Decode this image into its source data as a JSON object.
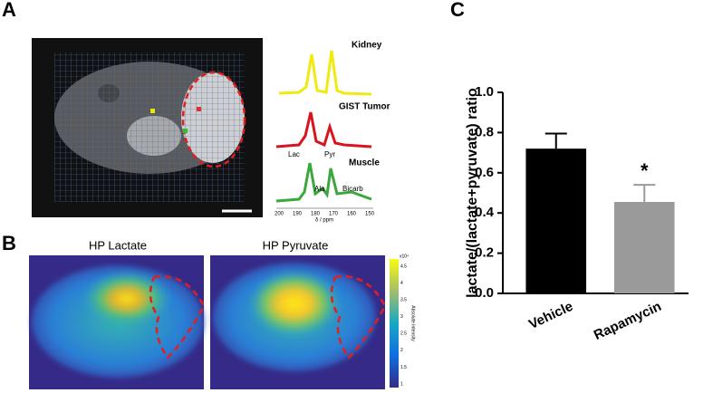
{
  "panels": {
    "a": "A",
    "b": "B",
    "c": "C"
  },
  "spectra": {
    "labels": [
      "Kidney",
      "GIST Tumor",
      "Muscle"
    ],
    "peaks": [
      "Lac",
      "Pyr",
      "Ala",
      "Bicarb"
    ],
    "axis_ticks": [
      "200",
      "190",
      "180",
      "170",
      "160",
      "150"
    ],
    "axis_label": "δ / ppm"
  },
  "heatmaps": {
    "titles": [
      "HP Lactate",
      "HP Pyruvate"
    ],
    "colorbar_exponent": "x10⁴",
    "colorbar_ticks": [
      "4.5",
      "4",
      "3.5",
      "3",
      "2.5",
      "2",
      "1.5",
      "1"
    ],
    "colorbar_label": "Absolute Intensity"
  },
  "chart_data": {
    "type": "bar",
    "ylabel": "lactate/(lactate+pyruvate) ratio",
    "categories": [
      "Vehicle",
      "Rapamycin"
    ],
    "values": [
      0.72,
      0.455
    ],
    "errors": [
      0.075,
      0.085
    ],
    "colors": [
      "#000000",
      "#9a9a9a"
    ],
    "annotations": [
      null,
      "*"
    ],
    "ylim": [
      0,
      1.0
    ],
    "yticks": [
      {
        "value": 0,
        "label": "0.0"
      },
      0.2,
      0.4,
      0.6,
      0.8,
      {
        "value": 1.0,
        "label": "1.0"
      }
    ]
  }
}
